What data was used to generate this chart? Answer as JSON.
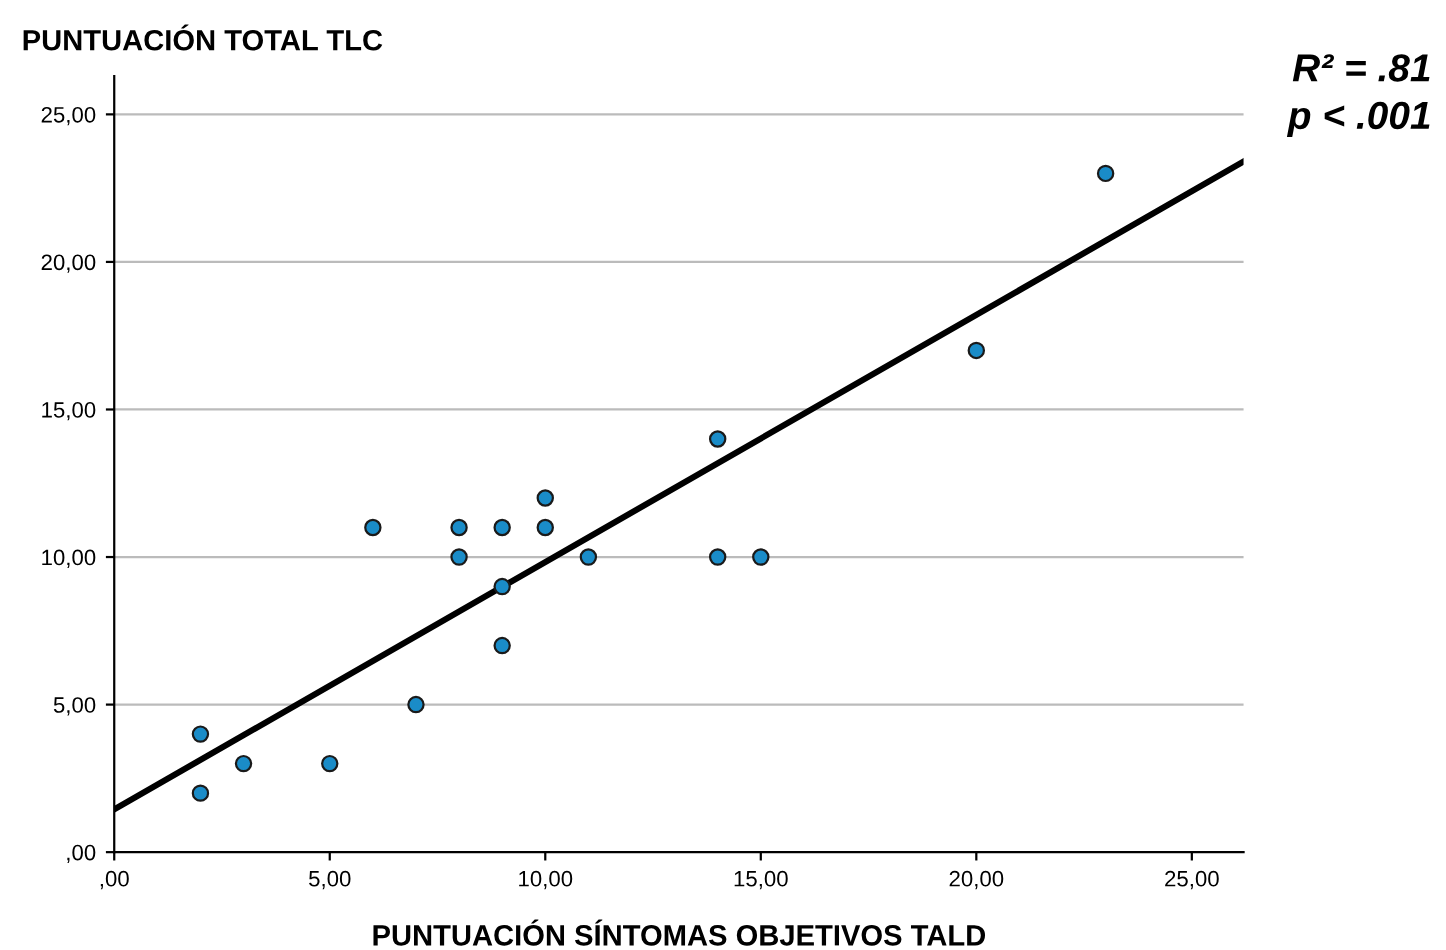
{
  "chart_data": {
    "type": "scatter",
    "ylabel": "PUNTUACIÓN TOTAL TLC",
    "xlabel": "PUNTUACIÓN SÍNTOMAS OBJETIVOS TALD",
    "annotations": [
      "R² = .81",
      "p < .001"
    ],
    "series": [
      {
        "marker": "circle",
        "color": "#1a8cc8",
        "x": [
          2,
          2,
          3,
          5,
          6,
          7,
          8,
          8,
          9,
          9,
          9,
          10,
          10,
          11,
          14,
          14,
          15,
          20,
          23
        ],
        "values": [
          4,
          2,
          3,
          3,
          11,
          5,
          11,
          10,
          11,
          9,
          7,
          12,
          11,
          10,
          14,
          10,
          10,
          17,
          23
        ]
      },
      {
        "type": "line",
        "marker": "none",
        "color": "#000000",
        "x": [
          0,
          26.2
        ],
        "values": [
          1.45,
          23.4
        ]
      }
    ],
    "xlim": [
      0,
      26.2
    ],
    "ylim": [
      0,
      26.3
    ],
    "xticks": [
      {
        "value": 0,
        "label": ",00"
      },
      {
        "value": 5,
        "label": "5,00"
      },
      {
        "value": 10,
        "label": "10,00"
      },
      {
        "value": 15,
        "label": "15,00"
      },
      {
        "value": 20,
        "label": "20,00"
      },
      {
        "value": 25,
        "label": "25,00"
      }
    ],
    "yticks": [
      {
        "value": 0,
        "label": ",00"
      },
      {
        "value": 5,
        "label": "5,00"
      },
      {
        "value": 10,
        "label": "10,00"
      },
      {
        "value": 15,
        "label": "15,00"
      },
      {
        "value": 20,
        "label": "20,00"
      },
      {
        "value": 25,
        "label": "25,00"
      }
    ],
    "grid": "y"
  }
}
